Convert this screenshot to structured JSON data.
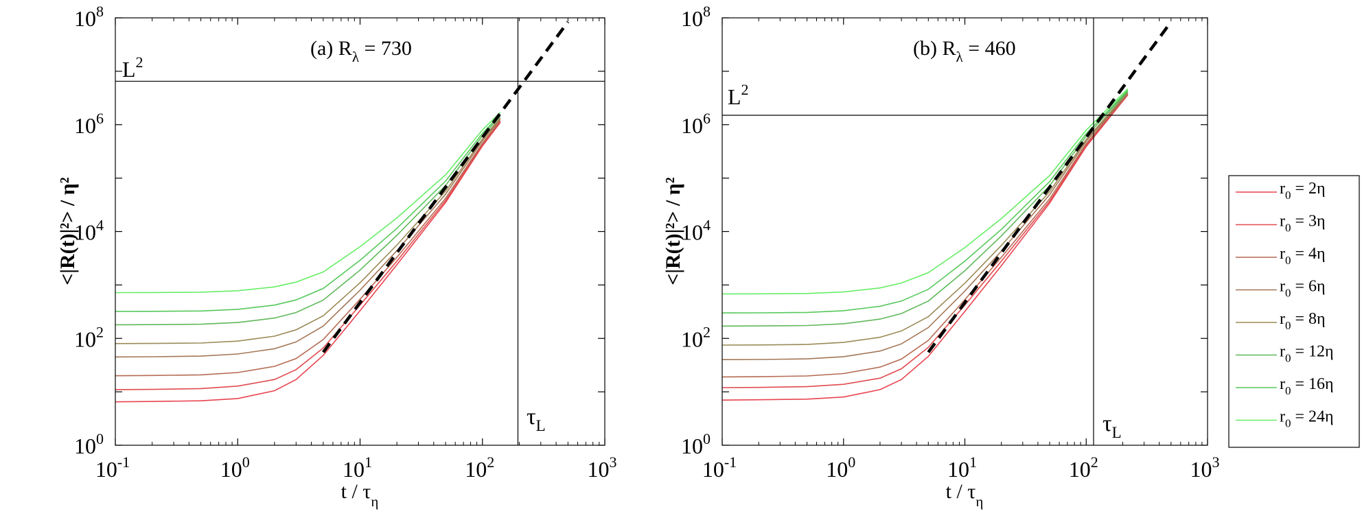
{
  "figure": {
    "legend": {
      "entries": [
        {
          "label": "r",
          "sub": "0",
          "tail": " = 2η",
          "color": "#e8434f"
        },
        {
          "label": "r",
          "sub": "0",
          "tail": " = 3η",
          "color": "#e04a4e"
        },
        {
          "label": "r",
          "sub": "0",
          "tail": " = 4η",
          "color": "#b56a52"
        },
        {
          "label": "r",
          "sub": "0",
          "tail": " = 6η",
          "color": "#a37656"
        },
        {
          "label": "r",
          "sub": "0",
          "tail": " = 8η",
          "color": "#9a8a56"
        },
        {
          "label": "r",
          "sub": "0",
          "tail": " = 12η",
          "color": "#5fb85a"
        },
        {
          "label": "r",
          "sub": "0",
          "tail": " = 16η",
          "color": "#55c85a"
        },
        {
          "label": "r",
          "sub": "0",
          "tail": " = 24η",
          "color": "#66ee66"
        }
      ]
    }
  },
  "chart_data": [
    {
      "type": "line",
      "panel": "a",
      "title": "(a) R",
      "title_sub": "λ",
      "title_tail": " = 730",
      "xscale": "log",
      "yscale": "log",
      "xlim": [
        0.1,
        1000
      ],
      "ylim": [
        1,
        100000000
      ],
      "xlabel": "t / τ",
      "xlabel_sub": "η",
      "ylabel": "<|R(t)|²> / η²",
      "x_ticks": [
        {
          "base": "10",
          "exp": "-1",
          "value": 0.1
        },
        {
          "base": "10",
          "exp": "0",
          "value": 1
        },
        {
          "base": "10",
          "exp": "1",
          "value": 10
        },
        {
          "base": "10",
          "exp": "2",
          "value": 100
        },
        {
          "base": "10",
          "exp": "3",
          "value": 1000
        }
      ],
      "y_ticks": [
        {
          "base": "10",
          "exp": "0",
          "value": 1
        },
        {
          "base": "10",
          "exp": "2",
          "value": 100
        },
        {
          "base": "10",
          "exp": "4",
          "value": 10000
        },
        {
          "base": "10",
          "exp": "6",
          "value": 1000000
        },
        {
          "base": "10",
          "exp": "8",
          "value": 100000000
        }
      ],
      "hline": {
        "y": 6500000,
        "label": "L",
        "label_sup": "2"
      },
      "vline": {
        "x": 195,
        "label": "τ",
        "label_sub": "L"
      },
      "fit_line": {
        "x": [
          5,
          500
        ],
        "y": [
          55,
          84000000
        ],
        "style": "dashed"
      },
      "series_x": [
        0.1,
        0.2,
        0.5,
        1,
        2,
        3,
        5,
        10,
        20,
        50,
        100,
        140
      ],
      "series": [
        {
          "name": "r0 = 2η",
          "values": [
            6.5,
            6.6,
            6.8,
            7.5,
            10.5,
            17,
            48,
            330,
            2400,
            35000,
            400000,
            1100000
          ]
        },
        {
          "name": "r0 = 3η",
          "values": [
            11,
            11.1,
            11.5,
            12.8,
            17,
            26,
            66,
            420,
            2800,
            38000,
            420000,
            1150000
          ]
        },
        {
          "name": "r0 = 4η",
          "values": [
            20,
            20.2,
            20.8,
            23,
            30,
            42,
            95,
            540,
            3300,
            42000,
            450000,
            1200000
          ]
        },
        {
          "name": "r0 = 6η",
          "values": [
            45,
            45.3,
            46.5,
            51,
            64,
            86,
            170,
            800,
            4400,
            50000,
            500000,
            1280000
          ]
        },
        {
          "name": "r0 = 8η",
          "values": [
            80,
            80.5,
            82,
            89,
            110,
            145,
            265,
            1100,
            5600,
            57000,
            540000,
            1350000
          ]
        },
        {
          "name": "r0 = 12η",
          "values": [
            180,
            181,
            184,
            198,
            240,
            305,
            520,
            1900,
            8500,
            73000,
            620000,
            1450000
          ]
        },
        {
          "name": "r0 = 16η",
          "values": [
            320,
            321,
            326,
            350,
            420,
            525,
            860,
            2900,
            11500,
            88000,
            690000,
            1550000
          ]
        },
        {
          "name": "r0 = 24η",
          "values": [
            720,
            722,
            733,
            780,
            920,
            1130,
            1750,
            5200,
            18000,
            115000,
            800000,
            1700000
          ]
        }
      ]
    },
    {
      "type": "line",
      "panel": "b",
      "title": "(b) R",
      "title_sub": "λ",
      "title_tail": " = 460",
      "xscale": "log",
      "yscale": "log",
      "xlim": [
        0.1,
        1000
      ],
      "ylim": [
        1,
        100000000
      ],
      "xlabel": "t / τ",
      "xlabel_sub": "η",
      "ylabel": "<|R(t)|²> / η²",
      "x_ticks": [
        {
          "base": "10",
          "exp": "-1",
          "value": 0.1
        },
        {
          "base": "10",
          "exp": "0",
          "value": 1
        },
        {
          "base": "10",
          "exp": "1",
          "value": 10
        },
        {
          "base": "10",
          "exp": "2",
          "value": 100
        },
        {
          "base": "10",
          "exp": "3",
          "value": 1000
        }
      ],
      "y_ticks": [
        {
          "base": "10",
          "exp": "0",
          "value": 1
        },
        {
          "base": "10",
          "exp": "2",
          "value": 100
        },
        {
          "base": "10",
          "exp": "4",
          "value": 10000
        },
        {
          "base": "10",
          "exp": "6",
          "value": 1000000
        },
        {
          "base": "10",
          "exp": "8",
          "value": 100000000
        }
      ],
      "hline": {
        "y": 1500000,
        "label": "L",
        "label_sup": "2"
      },
      "vline": {
        "x": 115,
        "label": "τ",
        "label_sub": "L"
      },
      "fit_line": {
        "x": [
          5,
          500
        ],
        "y": [
          55,
          84000000
        ],
        "style": "dashed"
      },
      "series_x": [
        0.1,
        0.2,
        0.5,
        1,
        2,
        3,
        5,
        10,
        20,
        50,
        100,
        220
      ],
      "series": [
        {
          "name": "r0 = 2η",
          "values": [
            7,
            7.1,
            7.3,
            8,
            11,
            17,
            46,
            320,
            2300,
            34000,
            390000,
            3600000
          ]
        },
        {
          "name": "r0 = 3η",
          "values": [
            12,
            12.1,
            12.5,
            13.8,
            18,
            27,
            68,
            420,
            2800,
            37000,
            410000,
            3700000
          ]
        },
        {
          "name": "r0 = 4η",
          "values": [
            19,
            19.2,
            19.8,
            22,
            29,
            41,
            92,
            530,
            3300,
            41000,
            440000,
            3800000
          ]
        },
        {
          "name": "r0 = 6η",
          "values": [
            40,
            40.3,
            41.4,
            45.5,
            58,
            79,
            160,
            770,
            4300,
            49000,
            490000,
            3900000
          ]
        },
        {
          "name": "r0 = 8η",
          "values": [
            75,
            75.5,
            77,
            84,
            105,
            138,
            255,
            1080,
            5500,
            56000,
            530000,
            4000000
          ]
        },
        {
          "name": "r0 = 12η",
          "values": [
            170,
            171,
            174,
            188,
            230,
            292,
            500,
            1850,
            8300,
            72000,
            610000,
            4200000
          ]
        },
        {
          "name": "r0 = 16η",
          "values": [
            300,
            301,
            306,
            330,
            400,
            500,
            830,
            2800,
            11000,
            86000,
            680000,
            4400000
          ]
        },
        {
          "name": "r0 = 24η",
          "values": [
            680,
            682,
            693,
            740,
            880,
            1090,
            1700,
            5000,
            17500,
            112000,
            790000,
            4700000
          ]
        }
      ]
    }
  ]
}
